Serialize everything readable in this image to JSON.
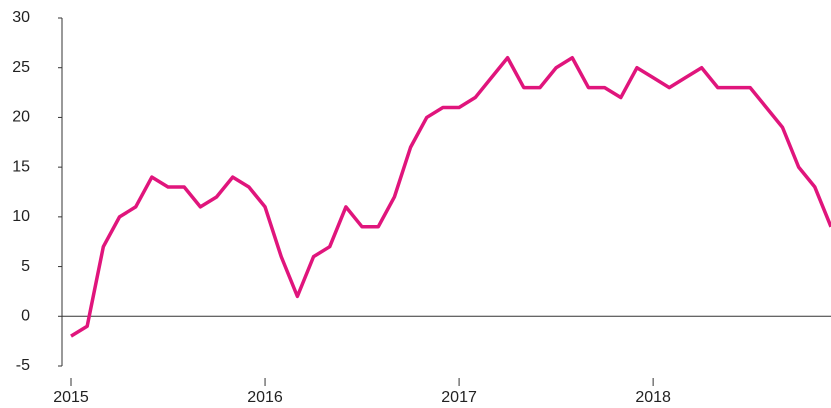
{
  "chart_data": {
    "type": "line",
    "categories": [
      "2015",
      null,
      null,
      null,
      null,
      null,
      null,
      null,
      null,
      null,
      null,
      null,
      "2016",
      null,
      null,
      null,
      null,
      null,
      null,
      null,
      null,
      null,
      null,
      null,
      "2017",
      null,
      null,
      null,
      null,
      null,
      null,
      null,
      null,
      null,
      null,
      null,
      "2018",
      null,
      null,
      null,
      null,
      null,
      null,
      null,
      null,
      null,
      null,
      null
    ],
    "series": [
      {
        "color": "#e0157c",
        "values": [
          -2,
          -1,
          7,
          10,
          11,
          14,
          13,
          13,
          11,
          12,
          14,
          13,
          11,
          6,
          2,
          6,
          7,
          11,
          9,
          9,
          12,
          17,
          20,
          21,
          21,
          22,
          24,
          26,
          23,
          23,
          25,
          26,
          23,
          23,
          22,
          25,
          24,
          23,
          24,
          25,
          23,
          23,
          23,
          21,
          19,
          15,
          13,
          9
        ]
      }
    ],
    "ylim": [
      -5,
      30
    ],
    "yticks": [
      -5,
      0,
      5,
      10,
      15,
      20,
      25,
      30
    ]
  }
}
